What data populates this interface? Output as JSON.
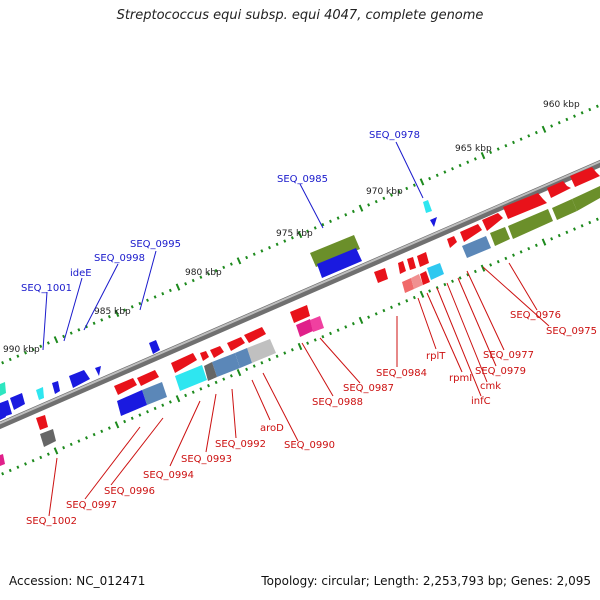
{
  "title": "Streptococcus equi subsp. equi 4047, complete genome",
  "footer": {
    "accession": "Accession: NC_012471",
    "summary": "Topology: circular; Length: 2,253,793 bp; Genes: 2,095"
  },
  "scale": {
    "tick_labels": [
      "960 kbp",
      "965 kbp",
      "970 kbp",
      "975 kbp",
      "980 kbp",
      "985 kbp",
      "990 kbp"
    ]
  },
  "colors": {
    "forward_label": "#1a1acc",
    "reverse_label": "#cc1111",
    "backbone": "#8a8a8a",
    "tick": "#1d8a1d"
  },
  "labels_forward": [
    "SEQ_0978",
    "SEQ_0985",
    "SEQ_0995",
    "SEQ_0998",
    "ideE",
    "SEQ_1001"
  ],
  "labels_reverse": [
    "SEQ_0976",
    "SEQ_0975",
    "SEQ_0977",
    "SEQ_0979",
    "cmk",
    "infC",
    "rpmI",
    "rplT",
    "SEQ_0984",
    "SEQ_0987",
    "SEQ_0988",
    "SEQ_0990",
    "aroD",
    "SEQ_0992",
    "SEQ_0993",
    "SEQ_0994",
    "SEQ_0996",
    "SEQ_0997",
    "SEQ_1002"
  ]
}
